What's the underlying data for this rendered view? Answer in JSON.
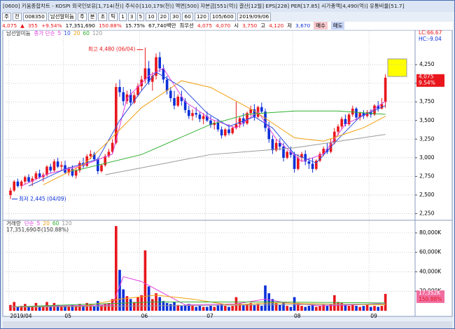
{
  "window": {
    "title": "[0600] 키움종합차트 - KOSPI 외국인보유[1,714(천)] 주식수[110,179(천)] 액면[500] 자본금[551(억)] 결산[12월] EPS[228] PER[17.85] 시가총액[4,490(억)] 유통비율[51.7]"
  },
  "toolbar": [
    "주",
    "전",
    "008350",
    "남선알미늄",
    "주",
    "분",
    "초",
    "틱",
    "1",
    "3",
    "5",
    "10",
    "20",
    "30",
    "60",
    "120",
    "105/600",
    "2019/09/06"
  ],
  "quote": [
    "4,075",
    "▲",
    "355",
    "+9.54%",
    "17,351,690",
    "150.88%",
    "15.75%",
    "67,740백만",
    "최우선",
    "4,075",
    "4,070",
    "시",
    "3,750",
    "고",
    "4,120",
    "저",
    "3,670",
    "매수",
    "매도"
  ],
  "chart_data": [
    {
      "type": "candlestick",
      "title": "남선알미늄",
      "legend_label": "종가 단순",
      "up_color": "#e8161c",
      "down_color": "#0a2fd8",
      "annotations": {
        "high": "최고 4,480 (06/04)",
        "low": "최저 2,445 (04/09)"
      },
      "right_labels": {
        "lc": "LC:66.67",
        "hc": "HC:-9.04",
        "price": "4,075",
        "change": "9.54%"
      },
      "ylim": [
        2170,
        4600
      ],
      "yticks": [
        {
          "value": 2250,
          "label": "2,250"
        },
        {
          "value": 2500,
          "label": "2,500"
        },
        {
          "value": 2750,
          "label": "2,750"
        },
        {
          "value": 3000,
          "label": "3,000"
        },
        {
          "value": 3250,
          "label": "3,250"
        },
        {
          "value": 3500,
          "label": "3,500"
        },
        {
          "value": 3750,
          "label": "3,750"
        },
        {
          "value": 4000,
          "label": "4,000"
        },
        {
          "value": 4250,
          "label": "4,250"
        }
      ],
      "xticks": [
        {
          "value": 0,
          "label": "2019/04"
        },
        {
          "value": 15,
          "label": "05"
        },
        {
          "value": 36,
          "label": "06"
        },
        {
          "value": 54,
          "label": "07"
        },
        {
          "value": 78,
          "label": "08"
        },
        {
          "value": 99,
          "label": "09"
        }
      ],
      "grid": true,
      "ohlc": [
        [
          2500,
          2600,
          2445,
          2560
        ],
        [
          2560,
          2700,
          2540,
          2680
        ],
        [
          2680,
          2720,
          2600,
          2620
        ],
        [
          2620,
          2700,
          2580,
          2680
        ],
        [
          2680,
          2760,
          2640,
          2740
        ],
        [
          2740,
          2780,
          2660,
          2680
        ],
        [
          2680,
          2750,
          2620,
          2720
        ],
        [
          2720,
          2820,
          2700,
          2790
        ],
        [
          2790,
          2840,
          2720,
          2740
        ],
        [
          2740,
          2800,
          2680,
          2770
        ],
        [
          2770,
          2900,
          2750,
          2880
        ],
        [
          2880,
          2920,
          2800,
          2830
        ],
        [
          2830,
          2980,
          2810,
          2950
        ],
        [
          2950,
          3000,
          2860,
          2880
        ],
        [
          2880,
          2950,
          2820,
          2900
        ],
        [
          2900,
          2960,
          2780,
          2800
        ],
        [
          2800,
          2880,
          2760,
          2850
        ],
        [
          2850,
          2900,
          2740,
          2760
        ],
        [
          2760,
          2860,
          2720,
          2830
        ],
        [
          2830,
          2960,
          2800,
          2930
        ],
        [
          2930,
          3000,
          2860,
          2890
        ],
        [
          2890,
          3050,
          2880,
          3020
        ],
        [
          3020,
          3100,
          2980,
          3050
        ],
        [
          3050,
          3080,
          2950,
          2980
        ],
        [
          2980,
          3000,
          2780,
          2820
        ],
        [
          2820,
          2920,
          2800,
          2900
        ],
        [
          2900,
          3050,
          2880,
          3020
        ],
        [
          3020,
          3120,
          3000,
          3080
        ],
        [
          3080,
          3250,
          3060,
          3200
        ],
        [
          3200,
          4000,
          3180,
          3950
        ],
        [
          3950,
          4050,
          3820,
          3880
        ],
        [
          3880,
          3950,
          3700,
          3760
        ],
        [
          3760,
          3900,
          3720,
          3850
        ],
        [
          3850,
          3920,
          3700,
          3740
        ],
        [
          3740,
          3880,
          3720,
          3840
        ],
        [
          3840,
          4000,
          3820,
          3960
        ],
        [
          3960,
          4100,
          3900,
          4050
        ],
        [
          4050,
          4480,
          4000,
          4200
        ],
        [
          4200,
          4300,
          3980,
          4020
        ],
        [
          4020,
          4150,
          3900,
          4100
        ],
        [
          4100,
          4400,
          4050,
          4350
        ],
        [
          4350,
          4420,
          4150,
          4200
        ],
        [
          4200,
          4250,
          4000,
          4050
        ],
        [
          4050,
          4100,
          3850,
          3900
        ],
        [
          3900,
          3950,
          3750,
          3800
        ],
        [
          3800,
          3900,
          3650,
          3700
        ],
        [
          3700,
          3850,
          3680,
          3820
        ],
        [
          3820,
          3900,
          3700,
          3760
        ],
        [
          3760,
          3800,
          3600,
          3640
        ],
        [
          3640,
          3700,
          3520,
          3560
        ],
        [
          3560,
          3650,
          3500,
          3600
        ],
        [
          3600,
          3680,
          3540,
          3580
        ],
        [
          3580,
          3620,
          3480,
          3520
        ],
        [
          3520,
          3600,
          3450,
          3560
        ],
        [
          3560,
          3620,
          3480,
          3500
        ],
        [
          3500,
          3560,
          3400,
          3440
        ],
        [
          3440,
          3500,
          3380,
          3470
        ],
        [
          3470,
          3520,
          3350,
          3380
        ],
        [
          3380,
          3420,
          3260,
          3300
        ],
        [
          3300,
          3400,
          3280,
          3380
        ],
        [
          3380,
          3450,
          3300,
          3330
        ],
        [
          3330,
          3420,
          3310,
          3400
        ],
        [
          3400,
          3750,
          3380,
          3450
        ],
        [
          3450,
          3550,
          3400,
          3530
        ],
        [
          3530,
          3600,
          3420,
          3460
        ],
        [
          3460,
          3620,
          3440,
          3600
        ],
        [
          3600,
          3700,
          3560,
          3650
        ],
        [
          3650,
          3720,
          3500,
          3550
        ],
        [
          3550,
          3700,
          3530,
          3680
        ],
        [
          3680,
          3740,
          3600,
          3620
        ],
        [
          3620,
          3660,
          3350,
          3400
        ],
        [
          3400,
          3480,
          3200,
          3250
        ],
        [
          3250,
          3300,
          3050,
          3100
        ],
        [
          3100,
          3250,
          3080,
          3200
        ],
        [
          3200,
          3260,
          3100,
          3150
        ],
        [
          3150,
          3200,
          2950,
          3000
        ],
        [
          3000,
          3100,
          2980,
          3080
        ],
        [
          3080,
          3150,
          3000,
          3040
        ],
        [
          3040,
          3080,
          2800,
          2850
        ],
        [
          2850,
          3050,
          2830,
          3000
        ],
        [
          3000,
          3080,
          2950,
          3050
        ],
        [
          3050,
          3100,
          2900,
          2950
        ],
        [
          2950,
          3000,
          2850,
          2920
        ],
        [
          2920,
          3000,
          2800,
          2850
        ],
        [
          2850,
          2980,
          2830,
          2960
        ],
        [
          2960,
          3080,
          2940,
          3050
        ],
        [
          3050,
          3150,
          3020,
          3120
        ],
        [
          3120,
          3200,
          3050,
          3080
        ],
        [
          3080,
          3250,
          3060,
          3200
        ],
        [
          3200,
          3400,
          3180,
          3350
        ],
        [
          3350,
          3450,
          3300,
          3420
        ],
        [
          3420,
          3550,
          3380,
          3520
        ],
        [
          3520,
          3580,
          3420,
          3450
        ],
        [
          3450,
          3600,
          3430,
          3580
        ],
        [
          3580,
          3700,
          3550,
          3660
        ],
        [
          3660,
          3680,
          3500,
          3540
        ],
        [
          3540,
          3620,
          3500,
          3600
        ],
        [
          3600,
          3640,
          3520,
          3560
        ],
        [
          3560,
          3640,
          3540,
          3610
        ],
        [
          3610,
          3650,
          3540,
          3580
        ],
        [
          3580,
          3720,
          3560,
          3700
        ],
        [
          3700,
          3760,
          3620,
          3660
        ],
        [
          3660,
          3800,
          3650,
          3720
        ],
        [
          3750,
          4120,
          3670,
          4075
        ]
      ],
      "series": [
        {
          "name": "5",
          "color": "#e040e0",
          "x": [
            3,
            10,
            20,
            28,
            32,
            38,
            42,
            48,
            55,
            62,
            68,
            73,
            80,
            86,
            92,
            98,
            103
          ],
          "values": [
            2620,
            2780,
            2900,
            3050,
            3800,
            4100,
            4200,
            3750,
            3520,
            3400,
            3620,
            3250,
            2950,
            3050,
            3450,
            3590,
            3760
          ]
        },
        {
          "name": "10",
          "color": "#3050e0",
          "x": [
            5,
            15,
            24,
            30,
            36,
            40,
            47,
            54,
            60,
            67,
            72,
            78,
            84,
            90,
            96,
            103
          ],
          "values": [
            2620,
            2850,
            2980,
            3500,
            3900,
            4150,
            3950,
            3600,
            3420,
            3550,
            3400,
            3050,
            2930,
            3250,
            3550,
            3700
          ]
        },
        {
          "name": "20",
          "color": "#f0a010",
          "x": [
            9,
            20,
            26,
            36,
            47,
            55,
            67,
            78,
            86,
            97,
            103
          ],
          "values": [
            2637,
            2907,
            3178,
            3673,
            4034,
            3944,
            3628,
            3268,
            3223,
            3403,
            3556
          ]
        },
        {
          "name": "60",
          "color": "#30b030",
          "x": [
            17,
            36,
            55,
            65,
            78,
            90,
            103
          ],
          "values": [
            2818,
            3043,
            3448,
            3583,
            3628,
            3628,
            3583
          ]
        },
        {
          "name": "120",
          "color": "#999999",
          "x": [
            26,
            55,
            78,
            103
          ],
          "values": [
            2772,
            3043,
            3133,
            3313
          ]
        }
      ]
    },
    {
      "type": "bar",
      "title": "거래량",
      "legend_label": "단순",
      "volume_label": "17,351,690주(150.88%)",
      "right_labels": {
        "volume": "17,352K",
        "ratio": "150.88%"
      },
      "ylim": [
        0,
        91500
      ],
      "yticks": [
        {
          "value": 20000,
          "label": "20,000K"
        },
        {
          "value": 40000,
          "label": "40,000K"
        },
        {
          "value": 60000,
          "label": "60,000K"
        },
        {
          "value": 80000,
          "label": "80,000K"
        }
      ],
      "values": [
        6000,
        9000,
        4000,
        5000,
        7000,
        4000,
        5000,
        8000,
        4000,
        5000,
        9000,
        5000,
        8000,
        6000,
        4000,
        5000,
        4000,
        6000,
        5000,
        7000,
        5000,
        8000,
        7000,
        5000,
        10000,
        6000,
        7000,
        8000,
        12000,
        87000,
        42000,
        22000,
        15000,
        12000,
        9000,
        14000,
        16000,
        62000,
        25000,
        12000,
        18000,
        14000,
        10000,
        8000,
        7000,
        9000,
        6000,
        5000,
        6000,
        7000,
        5000,
        4000,
        5000,
        4000,
        4000,
        5000,
        4000,
        6000,
        7000,
        5000,
        4000,
        5000,
        14000,
        8000,
        6000,
        7000,
        8000,
        6000,
        7000,
        5000,
        26000,
        18000,
        12000,
        8000,
        6000,
        9000,
        5000,
        4000,
        14000,
        8000,
        5000,
        4000,
        5000,
        6000,
        4000,
        5000,
        6000,
        5000,
        7000,
        16000,
        9000,
        8000,
        6000,
        5000,
        7000,
        5000,
        4000,
        5000,
        6000,
        4000,
        5000,
        4000,
        5000,
        17351.69
      ],
      "series": [
        {
          "name": "5",
          "color": "#e040e0",
          "x": [
            0,
            15,
            28,
            31,
            36,
            40,
            48,
            62,
            70,
            76,
            85,
            95,
            103
          ],
          "values": [
            4000,
            5000,
            6000,
            35000,
            30000,
            22000,
            6000,
            7000,
            12000,
            8000,
            5000,
            6000,
            8000
          ]
        },
        {
          "name": "20",
          "color": "#f0a010",
          "x": [
            0,
            20,
            30,
            40,
            50,
            60,
            72,
            85,
            103
          ],
          "values": [
            4000,
            4500,
            12000,
            16000,
            12000,
            6000,
            8000,
            7000,
            6000
          ]
        },
        {
          "name": "60",
          "color": "#30b030",
          "x": [
            0,
            40,
            70,
            103
          ],
          "values": [
            4000,
            9000,
            9000,
            8000
          ]
        },
        {
          "name": "120",
          "color": "#999999",
          "x": [
            0,
            103
          ],
          "values": [
            4000,
            7000
          ]
        }
      ]
    }
  ]
}
